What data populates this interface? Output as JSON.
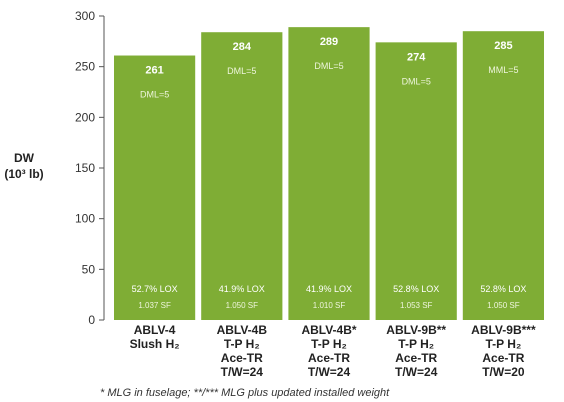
{
  "chart_data": {
    "type": "bar",
    "ylabel_line1": "DW",
    "ylabel_line2": "(10³ lb)",
    "ylim": [
      0,
      300
    ],
    "yticks": [
      0,
      50,
      100,
      150,
      200,
      250,
      300
    ],
    "grid": false,
    "bar_color": "#7fad35",
    "categories": [
      [
        "ABLV-4",
        "Slush H₂"
      ],
      [
        "ABLV-4B",
        "T-P H₂",
        "Ace-TR",
        "T/W=24"
      ],
      [
        "ABLV-4B*",
        "T-P H₂",
        "Ace-TR",
        "T/W=24"
      ],
      [
        "ABLV-9B**",
        "T-P H₂",
        "Ace-TR",
        "T/W=24"
      ],
      [
        "ABLV-9B***",
        "T-P H₂",
        "Ace-TR",
        "T/W=20"
      ]
    ],
    "values": [
      261,
      284,
      289,
      274,
      285
    ],
    "value_labels": [
      "261",
      "284",
      "289",
      "274",
      "285"
    ],
    "mid_labels": [
      "DML=5",
      "DML=5",
      "DML=5",
      "DML=5",
      "MML=5"
    ],
    "lox_labels": [
      "52.7% LOX",
      "41.9% LOX",
      "41.9% LOX",
      "52.8% LOX",
      "52.8% LOX"
    ],
    "sf_labels": [
      "1.037 SF",
      "1.050 SF",
      "1.010 SF",
      "1.053 SF",
      "1.050 SF"
    ],
    "footnote": "* MLG in fuselage; **/*** MLG plus updated installed weight"
  }
}
